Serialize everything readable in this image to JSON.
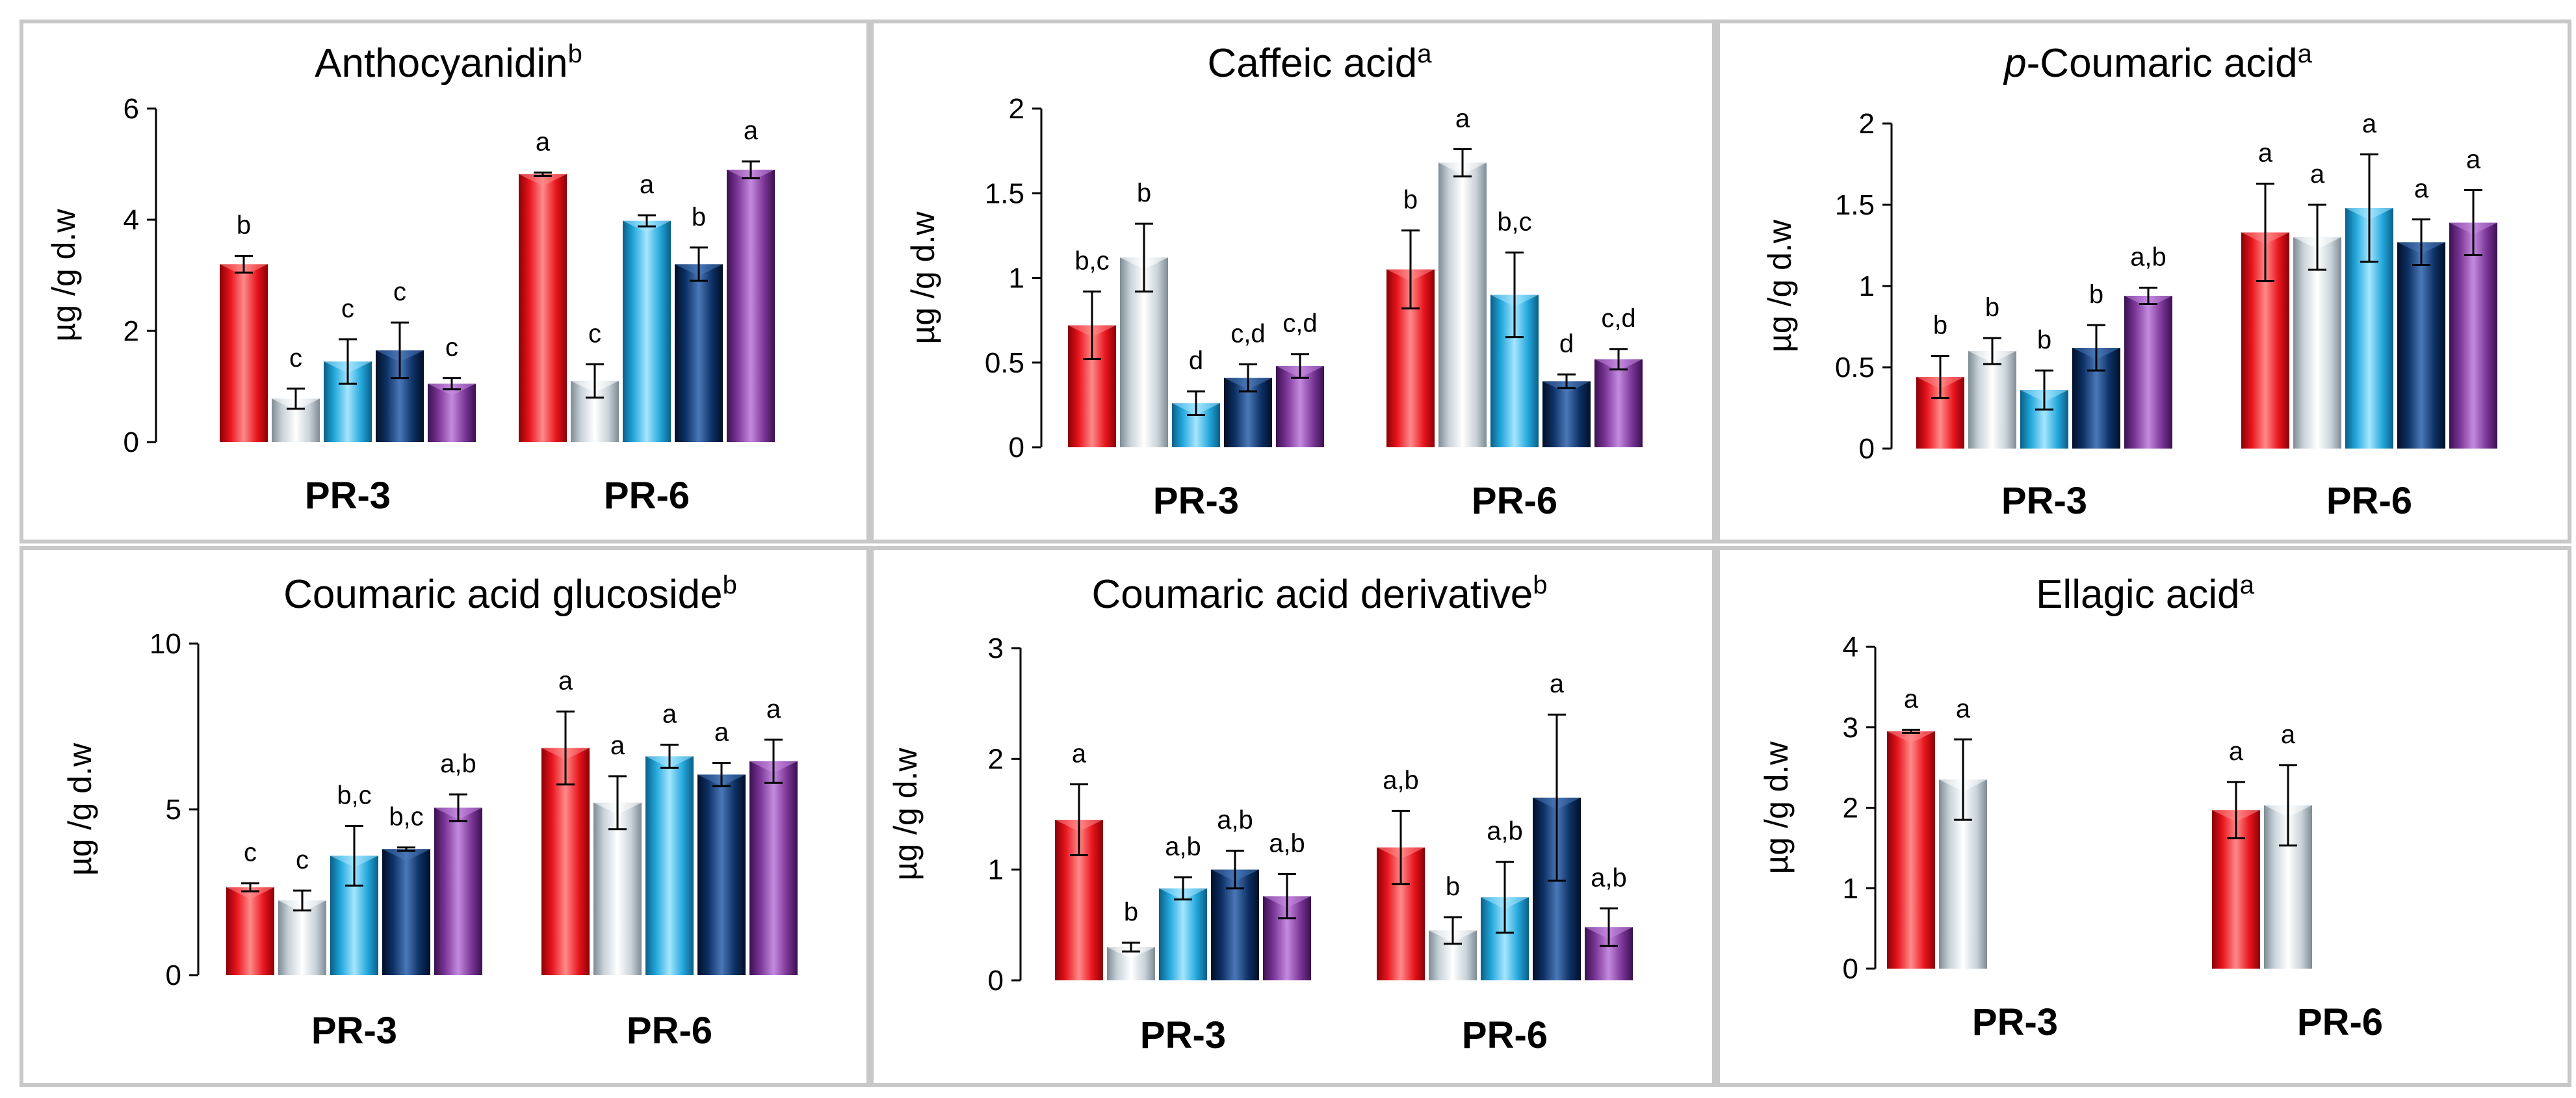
{
  "colors": {
    "series": [
      "#e8141c",
      "#c9d3da",
      "#22a7dc",
      "#0c2f63",
      "#7a3595"
    ],
    "highlight": [
      "#ff8a8a",
      "#ffffff",
      "#a6e6ff",
      "#4a78b8",
      "#c48ae0"
    ],
    "shade": [
      "#8a0006",
      "#7f8b94",
      "#0a5e86",
      "#020f26",
      "#3a1050"
    ]
  },
  "chart_data": [
    {
      "type": "bar",
      "title": "Anthocyanidin",
      "title_sup": "b",
      "title_prefix_italic": "",
      "ylabel": "µg /g d.w",
      "ylim": [
        0,
        6
      ],
      "yticks": [
        0,
        2,
        4,
        6
      ],
      "ytick_labels": [
        "0",
        "2",
        "4",
        "6"
      ],
      "categories": [
        "PR-3",
        "PR-6"
      ],
      "series": [
        {
          "name": "series-1",
          "values": [
            3.2,
            4.82
          ],
          "errors": [
            0.15,
            0.03
          ],
          "labels": [
            "b",
            "a"
          ]
        },
        {
          "name": "series-2",
          "values": [
            0.78,
            1.1
          ],
          "errors": [
            0.18,
            0.3
          ],
          "labels": [
            "c",
            "c"
          ]
        },
        {
          "name": "series-3",
          "values": [
            1.45,
            3.98
          ],
          "errors": [
            0.4,
            0.1
          ],
          "labels": [
            "c",
            "a"
          ]
        },
        {
          "name": "series-4",
          "values": [
            1.65,
            3.2
          ],
          "errors": [
            0.5,
            0.3
          ],
          "labels": [
            "c",
            "b"
          ]
        },
        {
          "name": "series-5",
          "values": [
            1.05,
            4.9
          ],
          "errors": [
            0.1,
            0.15
          ],
          "labels": [
            "c",
            "a"
          ]
        }
      ]
    },
    {
      "type": "bar",
      "title": "Caffeic acid",
      "title_sup": "a",
      "title_prefix_italic": "",
      "ylabel": "µg /g d.w",
      "ylim": [
        0,
        2
      ],
      "yticks": [
        0,
        0.5,
        1,
        1.5,
        2
      ],
      "ytick_labels": [
        "0",
        "0.5",
        "1",
        "1.5",
        "2"
      ],
      "categories": [
        "PR-3",
        "PR-6"
      ],
      "series": [
        {
          "name": "series-1",
          "values": [
            0.72,
            1.05
          ],
          "errors": [
            0.2,
            0.23
          ],
          "labels": [
            "b,c",
            "b"
          ]
        },
        {
          "name": "series-2",
          "values": [
            1.12,
            1.68
          ],
          "errors": [
            0.2,
            0.08
          ],
          "labels": [
            "b",
            "a"
          ]
        },
        {
          "name": "series-3",
          "values": [
            0.26,
            0.9
          ],
          "errors": [
            0.07,
            0.25
          ],
          "labels": [
            "d",
            "b,c"
          ]
        },
        {
          "name": "series-4",
          "values": [
            0.41,
            0.39
          ],
          "errors": [
            0.08,
            0.04
          ],
          "labels": [
            "c,d",
            "d"
          ]
        },
        {
          "name": "series-5",
          "values": [
            0.48,
            0.52
          ],
          "errors": [
            0.07,
            0.06
          ],
          "labels": [
            "c,d",
            "c,d"
          ]
        }
      ]
    },
    {
      "type": "bar",
      "title": "-Coumaric acid",
      "title_sup": "a",
      "title_prefix_italic": "p",
      "ylabel": "µg /g d.w",
      "ylim": [
        0,
        2
      ],
      "yticks": [
        0,
        0.5,
        1,
        1.5,
        2
      ],
      "ytick_labels": [
        "0",
        "0.5",
        "1",
        "1.5",
        "2"
      ],
      "categories": [
        "PR-3",
        "PR-6"
      ],
      "series": [
        {
          "name": "series-1",
          "values": [
            0.44,
            1.33
          ],
          "errors": [
            0.13,
            0.3
          ],
          "labels": [
            "b",
            "a"
          ]
        },
        {
          "name": "series-2",
          "values": [
            0.6,
            1.3
          ],
          "errors": [
            0.08,
            0.2
          ],
          "labels": [
            "b",
            "a"
          ]
        },
        {
          "name": "series-3",
          "values": [
            0.36,
            1.48
          ],
          "errors": [
            0.12,
            0.33
          ],
          "labels": [
            "b",
            "a"
          ]
        },
        {
          "name": "series-4",
          "values": [
            0.62,
            1.27
          ],
          "errors": [
            0.14,
            0.14
          ],
          "labels": [
            "b",
            "a"
          ]
        },
        {
          "name": "series-5",
          "values": [
            0.94,
            1.39
          ],
          "errors": [
            0.05,
            0.2
          ],
          "labels": [
            "a,b",
            "a"
          ]
        }
      ]
    },
    {
      "type": "bar",
      "title": "Coumaric acid glucoside",
      "title_sup": "b",
      "title_prefix_italic": "",
      "ylabel": "µg /g d.w",
      "ylim": [
        0,
        10
      ],
      "yticks": [
        0,
        5,
        10
      ],
      "ytick_labels": [
        "0",
        "5",
        "10"
      ],
      "categories": [
        "PR-3",
        "PR-6"
      ],
      "series": [
        {
          "name": "series-1",
          "values": [
            2.65,
            6.85
          ],
          "errors": [
            0.12,
            1.1
          ],
          "labels": [
            "c",
            "a"
          ]
        },
        {
          "name": "series-2",
          "values": [
            2.25,
            5.2
          ],
          "errors": [
            0.3,
            0.8
          ],
          "labels": [
            "c",
            "a"
          ]
        },
        {
          "name": "series-3",
          "values": [
            3.6,
            6.6
          ],
          "errors": [
            0.9,
            0.35
          ],
          "labels": [
            "b,c",
            "a"
          ]
        },
        {
          "name": "series-4",
          "values": [
            3.8,
            6.05
          ],
          "errors": [
            0.05,
            0.35
          ],
          "labels": [
            "b,c",
            "a"
          ]
        },
        {
          "name": "series-5",
          "values": [
            5.05,
            6.45
          ],
          "errors": [
            0.4,
            0.65
          ],
          "labels": [
            "a,b",
            "a"
          ]
        }
      ]
    },
    {
      "type": "bar",
      "title": "Coumaric acid derivative",
      "title_sup": "b",
      "title_prefix_italic": "",
      "ylabel": "µg /g d.w",
      "ylim": [
        0,
        3
      ],
      "yticks": [
        0,
        1,
        2,
        3
      ],
      "ytick_labels": [
        "0",
        "1",
        "2",
        "3"
      ],
      "categories": [
        "PR-3",
        "PR-6"
      ],
      "series": [
        {
          "name": "series-1",
          "values": [
            1.45,
            1.2
          ],
          "errors": [
            0.32,
            0.33
          ],
          "labels": [
            "a",
            "a,b"
          ]
        },
        {
          "name": "series-2",
          "values": [
            0.3,
            0.45
          ],
          "errors": [
            0.04,
            0.12
          ],
          "labels": [
            "b",
            "b"
          ]
        },
        {
          "name": "series-3",
          "values": [
            0.83,
            0.75
          ],
          "errors": [
            0.1,
            0.32
          ],
          "labels": [
            "a,b",
            "a,b"
          ]
        },
        {
          "name": "series-4",
          "values": [
            1.0,
            1.65
          ],
          "errors": [
            0.17,
            0.75
          ],
          "labels": [
            "a,b",
            "a"
          ]
        },
        {
          "name": "series-5",
          "values": [
            0.76,
            0.48
          ],
          "errors": [
            0.2,
            0.17
          ],
          "labels": [
            "a,b",
            "a,b"
          ]
        }
      ]
    },
    {
      "type": "bar",
      "title": "Ellagic acid",
      "title_sup": "a",
      "title_prefix_italic": "",
      "ylabel": "µg /g d.w",
      "ylim": [
        0,
        4
      ],
      "yticks": [
        0,
        1,
        2,
        3,
        4
      ],
      "ytick_labels": [
        "0",
        "1",
        "2",
        "3",
        "4"
      ],
      "categories": [
        "PR-3",
        "PR-6"
      ],
      "series": [
        {
          "name": "series-1",
          "values": [
            2.95,
            1.97
          ],
          "errors": [
            0.02,
            0.35
          ],
          "labels": [
            "a",
            "a"
          ]
        },
        {
          "name": "series-2",
          "values": [
            2.35,
            2.03
          ],
          "errors": [
            0.5,
            0.5
          ],
          "labels": [
            "a",
            "a"
          ]
        }
      ]
    }
  ]
}
